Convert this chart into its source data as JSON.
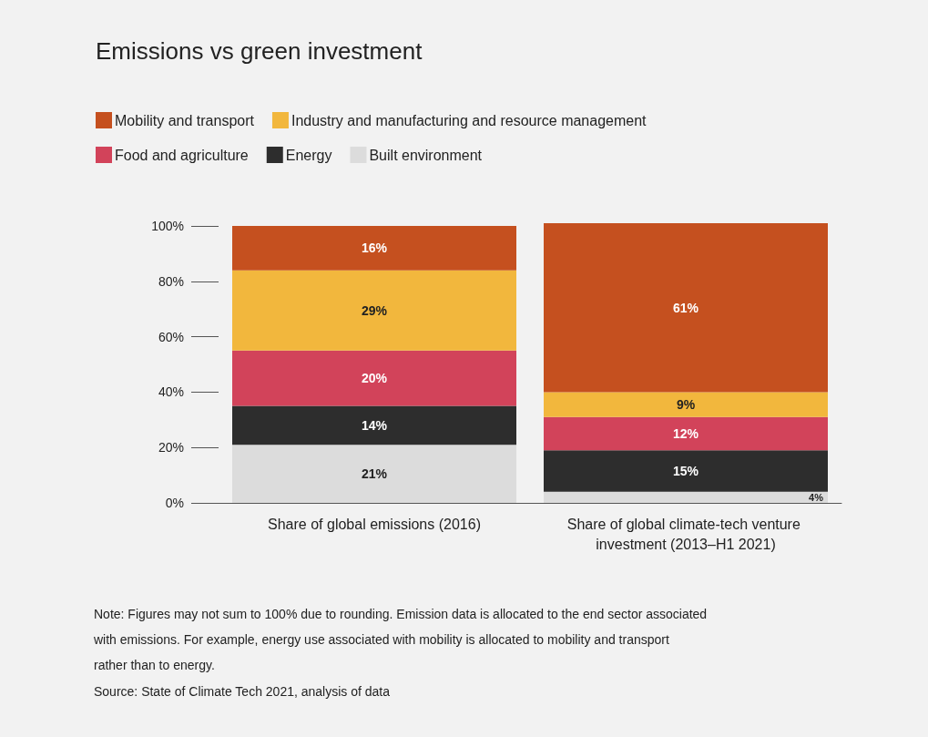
{
  "chart_data": {
    "type": "bar",
    "stacked": true,
    "title": "Emissions vs green investment",
    "categories": [
      "Share of global emissions (2016)",
      "Share of global climate-tech venture investment (2013–H1 2021)"
    ],
    "series": [
      {
        "name": "Built environment",
        "color": "#dcdcdc",
        "values": [
          21,
          4
        ],
        "value_labels": [
          "21%",
          "4%"
        ]
      },
      {
        "name": "Energy",
        "color": "#2d2d2d",
        "values": [
          14,
          15
        ],
        "value_labels": [
          "14%",
          "15%"
        ]
      },
      {
        "name": "Food and agriculture",
        "color": "#d2435a",
        "values": [
          20,
          12
        ],
        "value_labels": [
          "20%",
          "12%"
        ]
      },
      {
        "name": "Industry and manufacturing and resource management",
        "color": "#f2b73d",
        "values": [
          29,
          9
        ],
        "value_labels": [
          "29%",
          "9%"
        ]
      },
      {
        "name": "Mobility and transport",
        "color": "#c5501f",
        "values": [
          16,
          61
        ],
        "value_labels": [
          "16%",
          "61%"
        ]
      }
    ],
    "ylim": [
      0,
      101
    ],
    "yticks": [
      {
        "value": 0,
        "label": "0%"
      },
      {
        "value": 20,
        "label": "20%"
      },
      {
        "value": 40,
        "label": "40%"
      },
      {
        "value": 60,
        "label": "60%"
      },
      {
        "value": 80,
        "label": "80%"
      },
      {
        "value": 100,
        "label": "100%"
      }
    ],
    "grid": false,
    "legend": "top left",
    "annotations": [
      "Note: Figures may not sum to 100% due to rounding. Emission data is allocated to the end sector associated with emissions. For example, energy use associated with mobility is allocated to mobility and transport rather than to energy.",
      "Source: State of Climate Tech 2021, analysis of data"
    ]
  }
}
